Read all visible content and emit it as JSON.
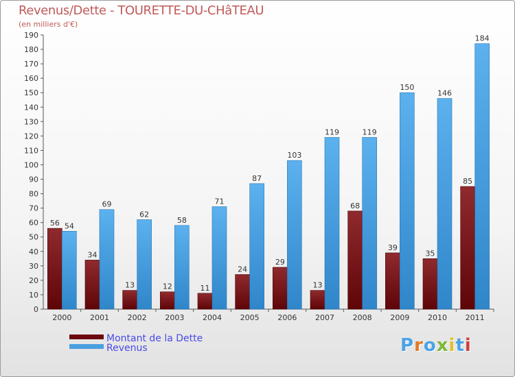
{
  "chart_data": {
    "type": "bar",
    "title": "Revenus/Dette - TOURETTE-DU-CHâTEAU",
    "subtitle": "(en milliers d'€)",
    "categories": [
      "2000",
      "2001",
      "2002",
      "2003",
      "2004",
      "2005",
      "2006",
      "2007",
      "2008",
      "2009",
      "2010",
      "2011"
    ],
    "series": [
      {
        "name": "Montant de la Dette",
        "color": "#7b0f14",
        "values": [
          56,
          34,
          13,
          12,
          11,
          24,
          29,
          13,
          68,
          39,
          35,
          85
        ]
      },
      {
        "name": "Revenus",
        "color": "#4a9fe0",
        "values": [
          54,
          69,
          62,
          58,
          71,
          87,
          103,
          119,
          119,
          150,
          146,
          184
        ]
      }
    ],
    "ylim": [
      0,
      190
    ],
    "yticks": [
      0,
      10,
      20,
      30,
      40,
      50,
      60,
      70,
      80,
      90,
      100,
      110,
      120,
      130,
      140,
      150,
      160,
      170,
      180,
      190
    ],
    "grid": false,
    "legend_position": "bottom-left"
  },
  "branding": {
    "logo_letters": [
      "P",
      "r",
      "o",
      "x",
      "i",
      "t",
      "i"
    ],
    "logo_colors": [
      "#4aa3e6",
      "#e07a2a",
      "#4aa3e6",
      "#7ab83a",
      "#e0c02a",
      "#4aa3e6",
      "#d04040"
    ]
  }
}
